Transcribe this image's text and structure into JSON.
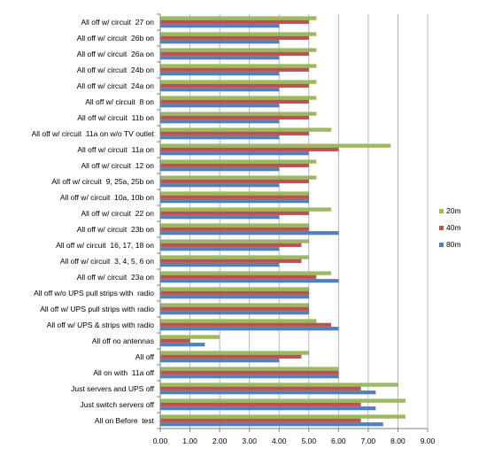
{
  "chart_data": {
    "type": "bar",
    "orientation": "horizontal",
    "categories": [
      "All off w/ circuit  27 on",
      "All off w/ circuit  26b on",
      "All off w/ circuit  26a on",
      "All off w/ circuit  24b on",
      "All off w/ circuit  24a on",
      "All off w/ circuit  8 on",
      "All off w/ circuit  11b on",
      "All off w/ circuit  11a on w/o TV outlet",
      "All off w/ circuit  11a on",
      "All off w/ circuit  12 on",
      "All off w/ circuit  9, 25a, 25b on",
      "All off w/ circuit  10a, 10b on",
      "All off w/ circuit  22 on",
      "All off w/ circuit  23b on",
      "All off w/ circuit  16, 17, 18 on",
      "All off w/ circuit  3, 4, 5, 6 on",
      "All off w/ circuit  23a on",
      "All off w/o UPS pull strips with  radio",
      "All off w/ UPS pull strips with radio",
      "All off w/ UPS & strips with radio",
      "All off no antennas",
      "All off",
      "All on with  11a off",
      "Just servers and UPS off",
      "Just switch servers off",
      "All on Before  test"
    ],
    "series": [
      {
        "name": "20m",
        "color": "#9bbb59",
        "values": [
          5.25,
          5.25,
          5.25,
          5.25,
          5.25,
          5.25,
          5.25,
          5.75,
          7.75,
          5.25,
          5.25,
          5.0,
          5.75,
          5.0,
          5.0,
          5.0,
          5.75,
          5.0,
          5.0,
          5.25,
          2.0,
          5.0,
          6.0,
          8.0,
          8.25,
          8.25
        ]
      },
      {
        "name": "40m",
        "color": "#c0504d",
        "values": [
          5.0,
          5.0,
          5.0,
          5.0,
          5.0,
          5.0,
          5.0,
          5.0,
          6.0,
          5.0,
          5.0,
          5.0,
          5.0,
          5.0,
          4.75,
          4.75,
          5.25,
          5.0,
          5.0,
          5.75,
          1.0,
          4.75,
          6.0,
          6.75,
          6.75,
          6.75
        ]
      },
      {
        "name": "80m",
        "color": "#4f81bd",
        "values": [
          4.0,
          4.0,
          4.0,
          4.0,
          4.0,
          4.0,
          4.0,
          4.0,
          5.0,
          4.0,
          4.0,
          5.0,
          4.0,
          6.0,
          4.0,
          4.0,
          6.0,
          5.0,
          5.0,
          6.0,
          1.5,
          4.0,
          6.0,
          7.25,
          7.25,
          7.5
        ]
      }
    ],
    "x_ticks": [
      "0.00",
      "1.00",
      "2.00",
      "3.00",
      "4.00",
      "5.00",
      "6.00",
      "7.00",
      "8.00",
      "9.00"
    ],
    "xlim": [
      0,
      9
    ],
    "title": "",
    "xlabel": "",
    "ylabel": "",
    "grid": "vertical-major",
    "legend_position": "right"
  }
}
